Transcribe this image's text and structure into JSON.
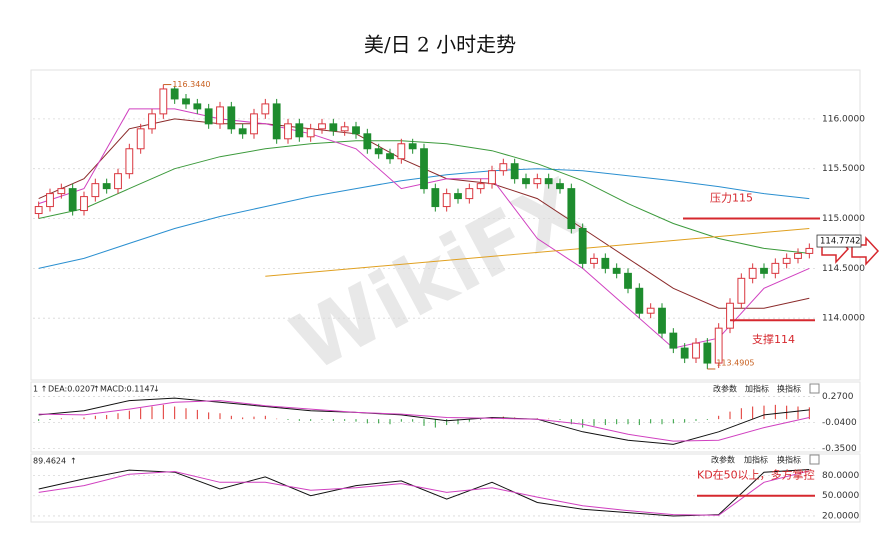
{
  "chart_data": [
    {
      "type": "candlestick",
      "title": "美/日 2 小时走势",
      "ohlc": [
        [
          115.05,
          115.17,
          115.0,
          115.12
        ],
        [
          115.12,
          115.3,
          115.07,
          115.25
        ],
        [
          115.25,
          115.35,
          115.2,
          115.3
        ],
        [
          115.3,
          115.35,
          115.03,
          115.08
        ],
        [
          115.08,
          115.27,
          115.03,
          115.22
        ],
        [
          115.22,
          115.4,
          115.17,
          115.35
        ],
        [
          115.35,
          115.4,
          115.25,
          115.3
        ],
        [
          115.3,
          115.5,
          115.25,
          115.45
        ],
        [
          115.45,
          115.75,
          115.4,
          115.7
        ],
        [
          115.7,
          115.95,
          115.65,
          115.9
        ],
        [
          115.9,
          116.1,
          115.85,
          116.05
        ],
        [
          116.05,
          116.344,
          116.0,
          116.3
        ],
        [
          116.3,
          116.33,
          116.15,
          116.2
        ],
        [
          116.2,
          116.25,
          116.1,
          116.15
        ],
        [
          116.15,
          116.2,
          116.05,
          116.1
        ],
        [
          116.1,
          116.15,
          115.9,
          115.95
        ],
        [
          115.95,
          116.17,
          115.9,
          116.12
        ],
        [
          116.12,
          116.17,
          115.85,
          115.9
        ],
        [
          115.9,
          115.95,
          115.8,
          115.85
        ],
        [
          115.85,
          116.1,
          115.8,
          116.05
        ],
        [
          116.05,
          116.2,
          116.0,
          116.15
        ],
        [
          116.15,
          116.2,
          115.75,
          115.8
        ],
        [
          115.8,
          116.0,
          115.75,
          115.95
        ],
        [
          115.95,
          116.0,
          115.77,
          115.82
        ],
        [
          115.82,
          115.95,
          115.77,
          115.9
        ],
        [
          115.9,
          116.0,
          115.85,
          115.95
        ],
        [
          115.95,
          116.0,
          115.83,
          115.88
        ],
        [
          115.88,
          115.97,
          115.83,
          115.92
        ],
        [
          115.92,
          115.97,
          115.8,
          115.85
        ],
        [
          115.85,
          115.9,
          115.65,
          115.7
        ],
        [
          115.7,
          115.75,
          115.6,
          115.65
        ],
        [
          115.65,
          115.7,
          115.55,
          115.6
        ],
        [
          115.6,
          115.8,
          115.55,
          115.75
        ],
        [
          115.75,
          115.8,
          115.65,
          115.7
        ],
        [
          115.7,
          115.75,
          115.25,
          115.3
        ],
        [
          115.3,
          115.35,
          115.07,
          115.12
        ],
        [
          115.12,
          115.3,
          115.07,
          115.25
        ],
        [
          115.25,
          115.3,
          115.15,
          115.2
        ],
        [
          115.2,
          115.35,
          115.15,
          115.3
        ],
        [
          115.3,
          115.4,
          115.25,
          115.35
        ],
        [
          115.35,
          115.53,
          115.3,
          115.48
        ],
        [
          115.48,
          115.6,
          115.43,
          115.55
        ],
        [
          115.55,
          115.6,
          115.35,
          115.4
        ],
        [
          115.4,
          115.45,
          115.3,
          115.35
        ],
        [
          115.35,
          115.45,
          115.3,
          115.4
        ],
        [
          115.4,
          115.45,
          115.3,
          115.35
        ],
        [
          115.35,
          115.4,
          115.25,
          115.3
        ],
        [
          115.3,
          115.35,
          114.85,
          114.9
        ],
        [
          114.9,
          114.95,
          114.5,
          114.55
        ],
        [
          114.55,
          114.65,
          114.5,
          114.6
        ],
        [
          114.6,
          114.65,
          114.45,
          114.5
        ],
        [
          114.5,
          114.55,
          114.4,
          114.45
        ],
        [
          114.45,
          114.5,
          114.25,
          114.3
        ],
        [
          114.3,
          114.35,
          114.0,
          114.05
        ],
        [
          114.05,
          114.15,
          114.0,
          114.1
        ],
        [
          114.1,
          114.15,
          113.8,
          113.85
        ],
        [
          113.85,
          113.9,
          113.65,
          113.7
        ],
        [
          113.7,
          113.75,
          113.55,
          113.6
        ],
        [
          113.6,
          113.8,
          113.55,
          113.75
        ],
        [
          113.75,
          113.8,
          113.4905,
          113.55
        ],
        [
          113.55,
          113.95,
          113.5,
          113.9
        ],
        [
          113.9,
          114.2,
          113.85,
          114.15
        ],
        [
          114.15,
          114.45,
          114.1,
          114.4
        ],
        [
          114.4,
          114.55,
          114.35,
          114.5
        ],
        [
          114.5,
          114.55,
          114.4,
          114.45
        ],
        [
          114.45,
          114.6,
          114.4,
          114.55
        ],
        [
          114.55,
          114.65,
          114.5,
          114.6
        ],
        [
          114.6,
          114.7,
          114.55,
          114.65
        ],
        [
          114.65,
          114.75,
          114.6,
          114.7
        ]
      ],
      "up_color": "#d9363e",
      "down_color": "#1e8c2e",
      "ylim": [
        113.4,
        116.44
      ],
      "yticks": [
        {
          "value": 114,
          "label": "114.0000"
        },
        {
          "value": 114.5,
          "label": "114.5000"
        },
        {
          "value": 115,
          "label": "115.0000"
        },
        {
          "value": 115.5,
          "label": "115.5000"
        },
        {
          "value": 116,
          "label": "116.0000"
        }
      ],
      "grid": true,
      "high_label": {
        "value": 116.344,
        "label": "116.3440"
      },
      "low_label": {
        "value": 113.4905,
        "label": "113.4905"
      },
      "last_price": 114.7742,
      "lines": [
        {
          "color": "#2a8fd0",
          "x": [
            0,
            4,
            8,
            12,
            16,
            20,
            24,
            28,
            32,
            36,
            40,
            44,
            48,
            52,
            56,
            60,
            64,
            68
          ],
          "values": [
            114.5,
            114.6,
            114.75,
            114.9,
            115.02,
            115.12,
            115.22,
            115.3,
            115.38,
            115.44,
            115.48,
            115.5,
            115.48,
            115.43,
            115.38,
            115.32,
            115.25,
            115.2
          ]
        },
        {
          "color": "#3c9a3c",
          "x": [
            0,
            4,
            8,
            12,
            16,
            20,
            24,
            28,
            32,
            36,
            40,
            44,
            48,
            52,
            56,
            60,
            64,
            68
          ],
          "values": [
            115.0,
            115.1,
            115.3,
            115.5,
            115.62,
            115.7,
            115.75,
            115.78,
            115.78,
            115.75,
            115.68,
            115.55,
            115.38,
            115.15,
            114.95,
            114.8,
            114.7,
            114.65
          ]
        },
        {
          "color": "#8b2a2a",
          "x": [
            0,
            4,
            8,
            12,
            16,
            20,
            24,
            28,
            32,
            36,
            40,
            44,
            48,
            52,
            56,
            60,
            64,
            68
          ],
          "values": [
            115.2,
            115.4,
            115.9,
            116.0,
            115.95,
            115.95,
            115.9,
            115.85,
            115.6,
            115.4,
            115.35,
            115.2,
            114.9,
            114.6,
            114.3,
            114.1,
            114.1,
            114.2
          ]
        },
        {
          "color": "#d040c0",
          "x": [
            0,
            4,
            8,
            12,
            16,
            20,
            24,
            28,
            32,
            36,
            40,
            44,
            48,
            52,
            56,
            60,
            64,
            68
          ],
          "values": [
            115.15,
            115.3,
            116.1,
            116.1,
            116.0,
            115.95,
            115.85,
            115.7,
            115.3,
            115.4,
            115.4,
            114.8,
            114.5,
            114.1,
            113.7,
            113.8,
            114.3,
            114.5
          ]
        },
        {
          "color": "#e0a020",
          "x": [
            20,
            68
          ],
          "values": [
            114.42,
            114.9
          ]
        }
      ],
      "annotations": [
        {
          "label": "压力115",
          "value": 115
        },
        {
          "label": "支撑114",
          "value": 113.98
        }
      ],
      "watermark": "WikiFX"
    },
    {
      "type": "bar",
      "header": [
        "DEA:0.0207",
        "MACD:0.1147"
      ],
      "toolbar": [
        "改参数",
        "加指标",
        "换指标"
      ],
      "values": [
        -0.02,
        -0.01,
        0.01,
        0.0,
        0.02,
        0.04,
        0.05,
        0.07,
        0.1,
        0.13,
        0.15,
        0.17,
        0.15,
        0.13,
        0.11,
        0.08,
        0.07,
        0.04,
        0.02,
        0.03,
        0.04,
        0.0,
        -0.01,
        -0.02,
        -0.02,
        -0.01,
        -0.02,
        -0.02,
        -0.03,
        -0.05,
        -0.05,
        -0.06,
        -0.03,
        -0.03,
        -0.08,
        -0.1,
        -0.07,
        -0.06,
        -0.03,
        -0.01,
        0.02,
        0.03,
        0.02,
        0.01,
        0.01,
        0.0,
        -0.01,
        -0.06,
        -0.1,
        -0.08,
        -0.07,
        -0.06,
        -0.06,
        -0.07,
        -0.05,
        -0.06,
        -0.05,
        -0.04,
        -0.02,
        -0.01,
        0.04,
        0.09,
        0.13,
        0.15,
        0.16,
        0.17,
        0.16,
        0.15,
        0.14
      ],
      "up_color": "#e0302a",
      "down_color": "#2a9d3a",
      "ylim": [
        -0.39,
        0.37
      ],
      "yticks": [
        {
          "value": -0.35,
          "label": "-0.3500"
        },
        {
          "value": -0.04,
          "label": "-0.0400"
        },
        {
          "value": 0.27,
          "label": "0.2700"
        }
      ],
      "lines": [
        {
          "color": "#111111",
          "x": [
            0,
            4,
            8,
            12,
            16,
            20,
            24,
            28,
            32,
            36,
            40,
            44,
            48,
            52,
            56,
            60,
            64,
            68
          ],
          "values": [
            0.05,
            0.1,
            0.22,
            0.25,
            0.2,
            0.15,
            0.1,
            0.08,
            0.05,
            -0.02,
            0.02,
            0.0,
            -0.15,
            -0.25,
            -0.3,
            -0.15,
            0.05,
            0.11
          ]
        },
        {
          "color": "#d040c0",
          "x": [
            0,
            4,
            8,
            12,
            16,
            20,
            24,
            28,
            32,
            36,
            40,
            44,
            48,
            52,
            56,
            60,
            64,
            68
          ],
          "values": [
            0.06,
            0.05,
            0.12,
            0.2,
            0.22,
            0.16,
            0.12,
            0.08,
            0.06,
            0.02,
            0.01,
            0.0,
            -0.06,
            -0.18,
            -0.26,
            -0.25,
            -0.1,
            0.02
          ]
        }
      ]
    },
    {
      "type": "line",
      "header": [
        "89.4624"
      ],
      "ylim": [
        14,
        106
      ],
      "yticks": [
        {
          "value": 20,
          "label": "20.0000"
        },
        {
          "value": 50,
          "label": "50.0000"
        },
        {
          "value": 80,
          "label": "80.0000"
        }
      ],
      "lines": [
        {
          "color": "#111111",
          "x": [
            0,
            4,
            8,
            12,
            16,
            20,
            24,
            28,
            32,
            36,
            40,
            44,
            48,
            52,
            56,
            60,
            64,
            68
          ],
          "values": [
            60,
            75,
            88,
            85,
            60,
            78,
            50,
            65,
            72,
            45,
            70,
            40,
            30,
            25,
            20,
            22,
            85,
            89
          ]
        },
        {
          "color": "#d040c0",
          "x": [
            0,
            4,
            8,
            12,
            16,
            20,
            24,
            28,
            32,
            36,
            40,
            44,
            48,
            52,
            56,
            60,
            64,
            68
          ],
          "values": [
            55,
            65,
            82,
            86,
            70,
            70,
            58,
            62,
            68,
            55,
            62,
            48,
            35,
            28,
            22,
            21,
            70,
            87
          ]
        }
      ],
      "annotations": [
        {
          "label": "KD在50以上，多方掌控",
          "value": 50
        }
      ]
    }
  ]
}
